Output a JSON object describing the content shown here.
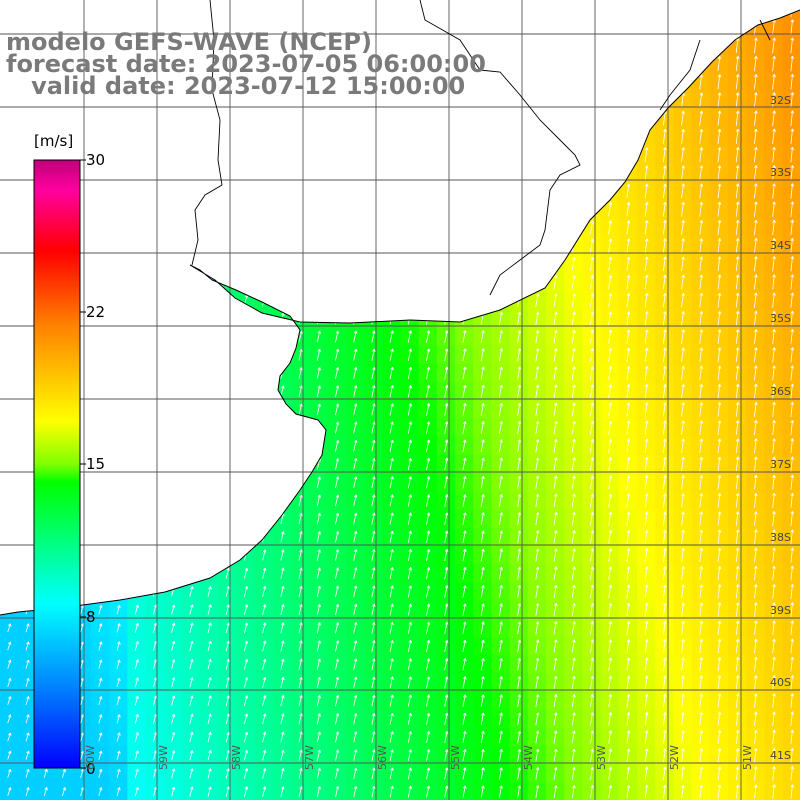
{
  "title": {
    "line1": "modelo GEFS-WAVE (NCEP)",
    "line2": "forecast date: 2023-07-05 06:00:00",
    "line3": "   valid date: 2023-07-12 15:00:00"
  },
  "colorbar": {
    "unit": "[m/s]",
    "ticks": [
      {
        "label": "30",
        "value": 30
      },
      {
        "label": "22",
        "value": 22
      },
      {
        "label": "15",
        "value": 15
      },
      {
        "label": "8",
        "value": 8
      },
      {
        "label": "0",
        "value": 0
      }
    ],
    "colors": [
      "#0000ff",
      "#0080ff",
      "#00ffff",
      "#00ff80",
      "#00ff00",
      "#80ff00",
      "#ffff00",
      "#ff8000",
      "#ff0000",
      "#ff00a0",
      "#c0007a"
    ]
  },
  "lat_labels": [
    "32S",
    "33S",
    "34S",
    "35S",
    "36S",
    "37S",
    "38S",
    "39S",
    "40S",
    "41S"
  ],
  "lon_labels": [
    "60W",
    "59W",
    "58W",
    "57W",
    "56W",
    "55W",
    "54W",
    "53W",
    "52W",
    "51W"
  ],
  "colors": {
    "land": "#ffffff",
    "coast": "#000000",
    "grid": "#555555",
    "arrow": "#ffffff",
    "title": "#7a7a7a"
  }
}
